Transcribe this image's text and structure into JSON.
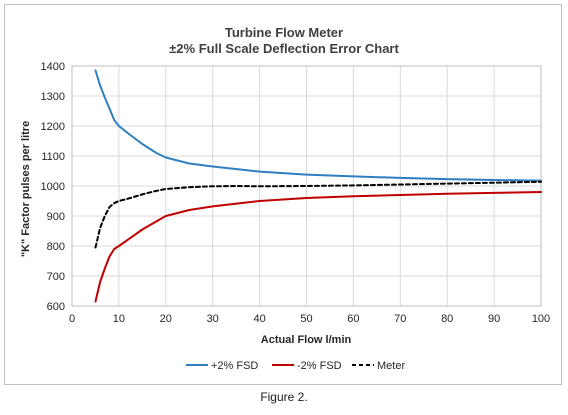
{
  "caption": "Figure 2.",
  "chart_data": {
    "type": "line",
    "title": "Turbine Flow Meter",
    "subtitle": "±2% Full Scale Deflection Error Chart",
    "xlabel": "Actual Flow l/min",
    "ylabel": "\"K\" Factor pulses per litre",
    "xlim": [
      0,
      100
    ],
    "ylim": [
      600,
      1400
    ],
    "x_ticks": [
      0,
      10,
      20,
      30,
      40,
      50,
      60,
      70,
      80,
      90,
      100
    ],
    "y_ticks": [
      600,
      700,
      800,
      900,
      1000,
      1100,
      1200,
      1300,
      1400
    ],
    "grid": true,
    "legend_position": "bottom",
    "series": [
      {
        "name": "+2% FSD",
        "color": "#2f7ec1",
        "style": "solid",
        "x": [
          5,
          6,
          7,
          8,
          9,
          10,
          12,
          15,
          18,
          20,
          25,
          30,
          40,
          50,
          60,
          70,
          80,
          90,
          100
        ],
        "y": [
          1385,
          1335,
          1295,
          1258,
          1220,
          1200,
          1175,
          1140,
          1110,
          1095,
          1075,
          1065,
          1048,
          1038,
          1032,
          1027,
          1023,
          1020,
          1018
        ]
      },
      {
        "name": "-2% FSD",
        "color": "#c00000",
        "style": "solid",
        "x": [
          5,
          6,
          7,
          8,
          9,
          10,
          12,
          15,
          18,
          20,
          25,
          30,
          40,
          50,
          60,
          70,
          80,
          90,
          100
        ],
        "y": [
          615,
          680,
          725,
          765,
          790,
          800,
          822,
          855,
          882,
          900,
          920,
          932,
          950,
          960,
          966,
          970,
          974,
          977,
          980
        ]
      },
      {
        "name": "Meter",
        "color": "#000000",
        "style": "dashed",
        "x": [
          5,
          6,
          7,
          8,
          9,
          10,
          12,
          15,
          18,
          20,
          25,
          30,
          35,
          40,
          50,
          60,
          70,
          80,
          90,
          100
        ],
        "y": [
          795,
          860,
          900,
          930,
          943,
          950,
          958,
          972,
          984,
          990,
          996,
          999,
          1000,
          999,
          1000,
          1002,
          1005,
          1008,
          1011,
          1014
        ]
      }
    ]
  }
}
